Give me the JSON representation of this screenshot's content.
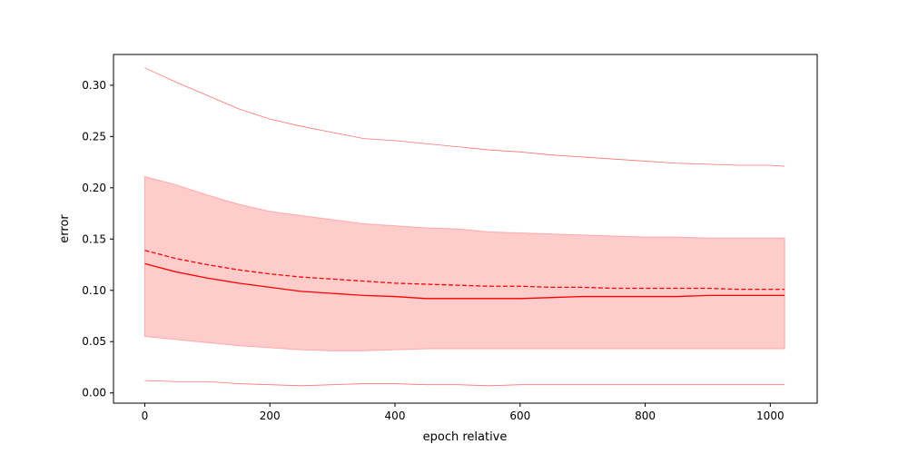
{
  "chart_data": {
    "type": "line",
    "title": "",
    "xlabel": "epoch relative",
    "ylabel": "error",
    "xlim": [
      -50,
      1075
    ],
    "ylim": [
      -0.01,
      0.33
    ],
    "xticks": [
      0,
      200,
      400,
      600,
      800,
      1000
    ],
    "yticks": [
      0.0,
      0.05,
      0.1,
      0.15,
      0.2,
      0.25,
      0.3
    ],
    "ytick_labels": [
      "0.00",
      "0.05",
      "0.10",
      "0.15",
      "0.20",
      "0.25",
      "0.30"
    ],
    "grid": false,
    "colors": {
      "line": "#ff0000",
      "band_fill": "#ff0000",
      "band_fill_opacity": 0.2,
      "extreme_line": "#ff0000"
    },
    "x": [
      0,
      50,
      100,
      150,
      200,
      250,
      300,
      350,
      400,
      450,
      500,
      550,
      600,
      650,
      700,
      750,
      800,
      850,
      900,
      950,
      1000,
      1023
    ],
    "series": [
      {
        "role": "median",
        "style": "solid",
        "values": [
          0.126,
          0.118,
          0.112,
          0.107,
          0.103,
          0.099,
          0.097,
          0.095,
          0.094,
          0.092,
          0.092,
          0.092,
          0.092,
          0.093,
          0.094,
          0.094,
          0.094,
          0.094,
          0.095,
          0.095,
          0.095,
          0.095
        ]
      },
      {
        "role": "mean",
        "style": "dashed",
        "values": [
          0.139,
          0.131,
          0.125,
          0.12,
          0.116,
          0.113,
          0.111,
          0.109,
          0.107,
          0.106,
          0.105,
          0.104,
          0.104,
          0.103,
          0.103,
          0.102,
          0.102,
          0.102,
          0.102,
          0.101,
          0.101,
          0.101
        ]
      },
      {
        "role": "band-upper",
        "style": "fill",
        "values": [
          0.211,
          0.203,
          0.193,
          0.184,
          0.177,
          0.173,
          0.169,
          0.165,
          0.163,
          0.161,
          0.16,
          0.157,
          0.156,
          0.155,
          0.154,
          0.153,
          0.152,
          0.152,
          0.151,
          0.151,
          0.151,
          0.151
        ]
      },
      {
        "role": "band-lower",
        "style": "fill",
        "values": [
          0.055,
          0.052,
          0.049,
          0.046,
          0.044,
          0.042,
          0.041,
          0.041,
          0.042,
          0.043,
          0.043,
          0.043,
          0.043,
          0.043,
          0.043,
          0.043,
          0.043,
          0.043,
          0.043,
          0.043,
          0.043,
          0.043
        ]
      },
      {
        "role": "max",
        "style": "thin",
        "values": [
          0.317,
          0.303,
          0.29,
          0.277,
          0.267,
          0.26,
          0.254,
          0.248,
          0.246,
          0.243,
          0.24,
          0.237,
          0.235,
          0.232,
          0.23,
          0.228,
          0.226,
          0.224,
          0.223,
          0.222,
          0.222,
          0.221
        ]
      },
      {
        "role": "min",
        "style": "thin",
        "values": [
          0.012,
          0.011,
          0.011,
          0.009,
          0.008,
          0.007,
          0.008,
          0.009,
          0.009,
          0.008,
          0.008,
          0.007,
          0.008,
          0.008,
          0.008,
          0.008,
          0.008,
          0.008,
          0.008,
          0.008,
          0.008,
          0.008
        ]
      }
    ]
  }
}
